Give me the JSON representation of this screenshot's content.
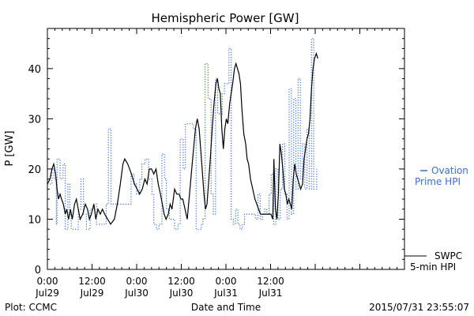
{
  "chart_data": {
    "type": "line",
    "title": "Hemispheric Power [GW]",
    "xlabel": "Date and Time",
    "ylabel": "P [GW]",
    "xlim": [
      0,
      96
    ],
    "ylim": [
      0,
      48
    ],
    "yticks": [
      0,
      10,
      20,
      30,
      40
    ],
    "xticks": [
      {
        "x": 0,
        "time": "0:00",
        "date": "Jul29"
      },
      {
        "x": 12,
        "time": "12:00",
        "date": "Jul29"
      },
      {
        "x": 24,
        "time": "0:00",
        "date": "Jul30"
      },
      {
        "x": 36,
        "time": "12:00",
        "date": "Jul30"
      },
      {
        "x": 48,
        "time": "0:00",
        "date": "Jul31"
      },
      {
        "x": 60,
        "time": "12:00",
        "date": "Jul31"
      }
    ],
    "series": [
      {
        "name": "SWPC 5-min HPI",
        "label_lines": [
          "SWPC",
          "5-min HPI"
        ],
        "style": "solid",
        "color": "#000000",
        "points": [
          [
            0,
            17
          ],
          [
            0.7,
            18
          ],
          [
            1.2,
            20
          ],
          [
            1.7,
            21
          ],
          [
            2.2,
            19
          ],
          [
            2.6,
            16
          ],
          [
            3.0,
            14
          ],
          [
            3.4,
            15
          ],
          [
            3.8,
            14
          ],
          [
            4.3,
            13
          ],
          [
            4.8,
            11
          ],
          [
            5.2,
            12
          ],
          [
            5.7,
            10
          ],
          [
            6.2,
            12
          ],
          [
            6.7,
            10
          ],
          [
            7.3,
            13
          ],
          [
            7.8,
            14
          ],
          [
            8.3,
            12
          ],
          [
            8.8,
            10
          ],
          [
            9.5,
            11
          ],
          [
            10.2,
            13
          ],
          [
            10.8,
            12
          ],
          [
            11.3,
            10
          ],
          [
            11.8,
            11
          ],
          [
            12.5,
            13
          ],
          [
            13.0,
            10
          ],
          [
            13.6,
            12
          ],
          [
            14.2,
            11
          ],
          [
            14.8,
            12
          ],
          [
            15.4,
            11
          ],
          [
            16.2,
            10
          ],
          [
            17.0,
            9
          ],
          [
            18.0,
            10
          ],
          [
            18.8,
            13
          ],
          [
            19.6,
            17
          ],
          [
            20.3,
            21
          ],
          [
            20.8,
            22
          ],
          [
            21.6,
            21
          ],
          [
            22.6,
            19
          ],
          [
            23.4,
            17
          ],
          [
            24.1,
            16
          ],
          [
            24.8,
            15
          ],
          [
            25.5,
            16
          ],
          [
            26.2,
            18
          ],
          [
            26.8,
            17
          ],
          [
            27.4,
            20
          ],
          [
            28.0,
            20
          ],
          [
            28.6,
            19
          ],
          [
            29.2,
            20
          ],
          [
            29.8,
            17
          ],
          [
            30.4,
            15
          ],
          [
            30.9,
            13
          ],
          [
            31.4,
            11
          ],
          [
            31.9,
            10
          ],
          [
            32.5,
            11
          ],
          [
            33.0,
            13
          ],
          [
            33.5,
            12
          ],
          [
            34.2,
            16
          ],
          [
            34.8,
            15
          ],
          [
            35.4,
            15
          ],
          [
            35.9,
            14
          ],
          [
            36.4,
            14
          ],
          [
            37.0,
            12
          ],
          [
            37.6,
            10
          ],
          [
            38.2,
            15
          ],
          [
            38.8,
            20
          ],
          [
            39.3,
            24
          ],
          [
            39.8,
            28
          ],
          [
            40.3,
            30
          ],
          [
            40.8,
            28
          ],
          [
            41.2,
            24
          ],
          [
            41.6,
            20
          ],
          [
            42.1,
            15
          ],
          [
            42.5,
            12
          ],
          [
            42.9,
            13
          ],
          [
            43.3,
            17
          ],
          [
            43.8,
            22
          ],
          [
            44.3,
            28
          ],
          [
            44.8,
            33
          ],
          [
            45.3,
            37
          ],
          [
            45.7,
            38
          ],
          [
            46.1,
            36
          ],
          [
            46.5,
            35
          ],
          [
            46.9,
            28
          ],
          [
            47.3,
            24
          ],
          [
            47.7,
            28
          ],
          [
            48.1,
            30
          ],
          [
            48.5,
            29
          ],
          [
            49.0,
            33
          ],
          [
            49.4,
            35
          ],
          [
            49.8,
            37
          ],
          [
            50.3,
            40
          ],
          [
            50.7,
            41
          ],
          [
            51.1,
            40
          ],
          [
            51.5,
            39
          ],
          [
            51.9,
            37
          ],
          [
            52.3,
            32
          ],
          [
            52.8,
            27
          ],
          [
            53.3,
            25
          ],
          [
            53.7,
            22
          ],
          [
            54.1,
            21
          ],
          [
            54.6,
            18
          ],
          [
            55.2,
            16
          ],
          [
            55.8,
            14
          ],
          [
            56.3,
            13
          ],
          [
            56.8,
            12
          ],
          [
            57.3,
            11
          ],
          [
            58.0,
            11
          ],
          [
            58.8,
            11
          ],
          [
            59.5,
            11
          ],
          [
            60.1,
            11
          ],
          [
            60.6,
            10
          ],
          [
            60.9,
            22
          ],
          [
            61.3,
            12
          ],
          [
            61.7,
            10
          ],
          [
            62.1,
            15
          ],
          [
            62.5,
            25
          ],
          [
            62.9,
            23
          ],
          [
            63.3,
            20
          ],
          [
            63.7,
            16
          ],
          [
            64.1,
            15
          ],
          [
            64.5,
            13
          ],
          [
            64.9,
            14
          ],
          [
            65.3,
            13
          ],
          [
            65.7,
            12
          ],
          [
            66.1,
            18
          ],
          [
            66.5,
            21
          ],
          [
            66.9,
            19
          ],
          [
            67.3,
            18
          ],
          [
            67.7,
            17
          ],
          [
            68.1,
            16
          ],
          [
            68.6,
            17
          ],
          [
            69.0,
            22
          ],
          [
            69.4,
            24
          ],
          [
            69.8,
            26
          ],
          [
            70.2,
            27
          ],
          [
            70.6,
            30
          ],
          [
            71.0,
            36
          ],
          [
            71.4,
            40
          ],
          [
            71.8,
            42
          ],
          [
            72.3,
            43
          ],
          [
            72.7,
            42
          ]
        ]
      },
      {
        "name": "Ovation Prime HPI",
        "label_lines": [
          "Ovation",
          "Prime HPI"
        ],
        "style": "dotted-step",
        "color": "#3a6fd8",
        "points": [
          [
            0,
            17
          ],
          [
            1.2,
            20
          ],
          [
            1.8,
            18
          ],
          [
            2.4,
            9
          ],
          [
            2.6,
            22
          ],
          [
            3.4,
            18
          ],
          [
            4.2,
            21
          ],
          [
            4.8,
            8
          ],
          [
            5.5,
            17
          ],
          [
            6.0,
            11
          ],
          [
            6.4,
            8
          ],
          [
            7.4,
            8
          ],
          [
            8.3,
            12
          ],
          [
            9.0,
            18
          ],
          [
            9.7,
            11
          ],
          [
            10.5,
            8
          ],
          [
            11.5,
            12
          ],
          [
            12.3,
            13
          ],
          [
            13.2,
            9
          ],
          [
            14.4,
            9
          ],
          [
            15.8,
            13
          ],
          [
            16.4,
            28
          ],
          [
            17.1,
            13
          ],
          [
            18.2,
            13
          ],
          [
            19.6,
            13
          ],
          [
            20.2,
            13
          ],
          [
            21.5,
            13
          ],
          [
            22.5,
            19
          ],
          [
            23.3,
            17
          ],
          [
            24.0,
            15
          ],
          [
            24.8,
            18
          ],
          [
            25.4,
            21
          ],
          [
            26.3,
            22
          ],
          [
            27.2,
            18
          ],
          [
            28.1,
            15
          ],
          [
            28.6,
            9
          ],
          [
            29.3,
            8
          ],
          [
            30.0,
            9
          ],
          [
            30.8,
            23
          ],
          [
            31.5,
            18
          ],
          [
            32.0,
            12
          ],
          [
            32.8,
            10
          ],
          [
            33.6,
            10
          ],
          [
            34.2,
            8
          ],
          [
            35.1,
            9
          ],
          [
            35.7,
            26
          ],
          [
            36.5,
            20
          ],
          [
            37.1,
            29
          ],
          [
            37.7,
            29
          ],
          [
            38.4,
            29
          ],
          [
            39.2,
            28
          ],
          [
            40.0,
            8
          ],
          [
            40.6,
            8
          ],
          [
            41.4,
            9
          ],
          [
            41.8,
            10
          ],
          [
            42.4,
            41
          ],
          [
            43.2,
            34
          ],
          [
            44.0,
            15
          ],
          [
            44.6,
            11
          ],
          [
            45.2,
            38
          ],
          [
            45.8,
            31
          ],
          [
            46.4,
            31
          ],
          [
            47.0,
            35
          ],
          [
            47.6,
            37
          ],
          [
            48.2,
            37
          ],
          [
            48.8,
            44
          ],
          [
            49.4,
            10
          ],
          [
            50.0,
            9
          ],
          [
            50.6,
            12
          ],
          [
            51.2,
            9
          ],
          [
            51.8,
            8
          ],
          [
            52.4,
            9
          ],
          [
            53.0,
            11
          ],
          [
            53.6,
            11
          ],
          [
            54.2,
            11
          ],
          [
            54.8,
            11
          ],
          [
            55.4,
            11
          ],
          [
            56.0,
            10
          ],
          [
            56.6,
            15
          ],
          [
            57.2,
            10
          ],
          [
            57.8,
            11
          ],
          [
            58.4,
            12
          ],
          [
            59.0,
            11
          ],
          [
            59.6,
            15
          ],
          [
            60.2,
            19
          ],
          [
            60.8,
            9
          ],
          [
            61.4,
            20
          ],
          [
            62.0,
            10
          ],
          [
            62.6,
            16
          ],
          [
            63.2,
            25
          ],
          [
            63.8,
            15
          ],
          [
            64.4,
            10
          ],
          [
            65.0,
            36
          ],
          [
            65.6,
            11
          ],
          [
            66.2,
            34
          ],
          [
            66.8,
            16
          ],
          [
            67.4,
            38
          ],
          [
            68.0,
            18
          ],
          [
            68.6,
            25
          ],
          [
            69.2,
            16
          ],
          [
            69.8,
            28
          ],
          [
            70.4,
            16
          ],
          [
            71.0,
            46
          ],
          [
            71.6,
            16
          ],
          [
            72.4,
            20
          ]
        ]
      }
    ],
    "footer_left": "Plot: CCMC",
    "footer_right": "2015/07/31 23:55:07"
  }
}
